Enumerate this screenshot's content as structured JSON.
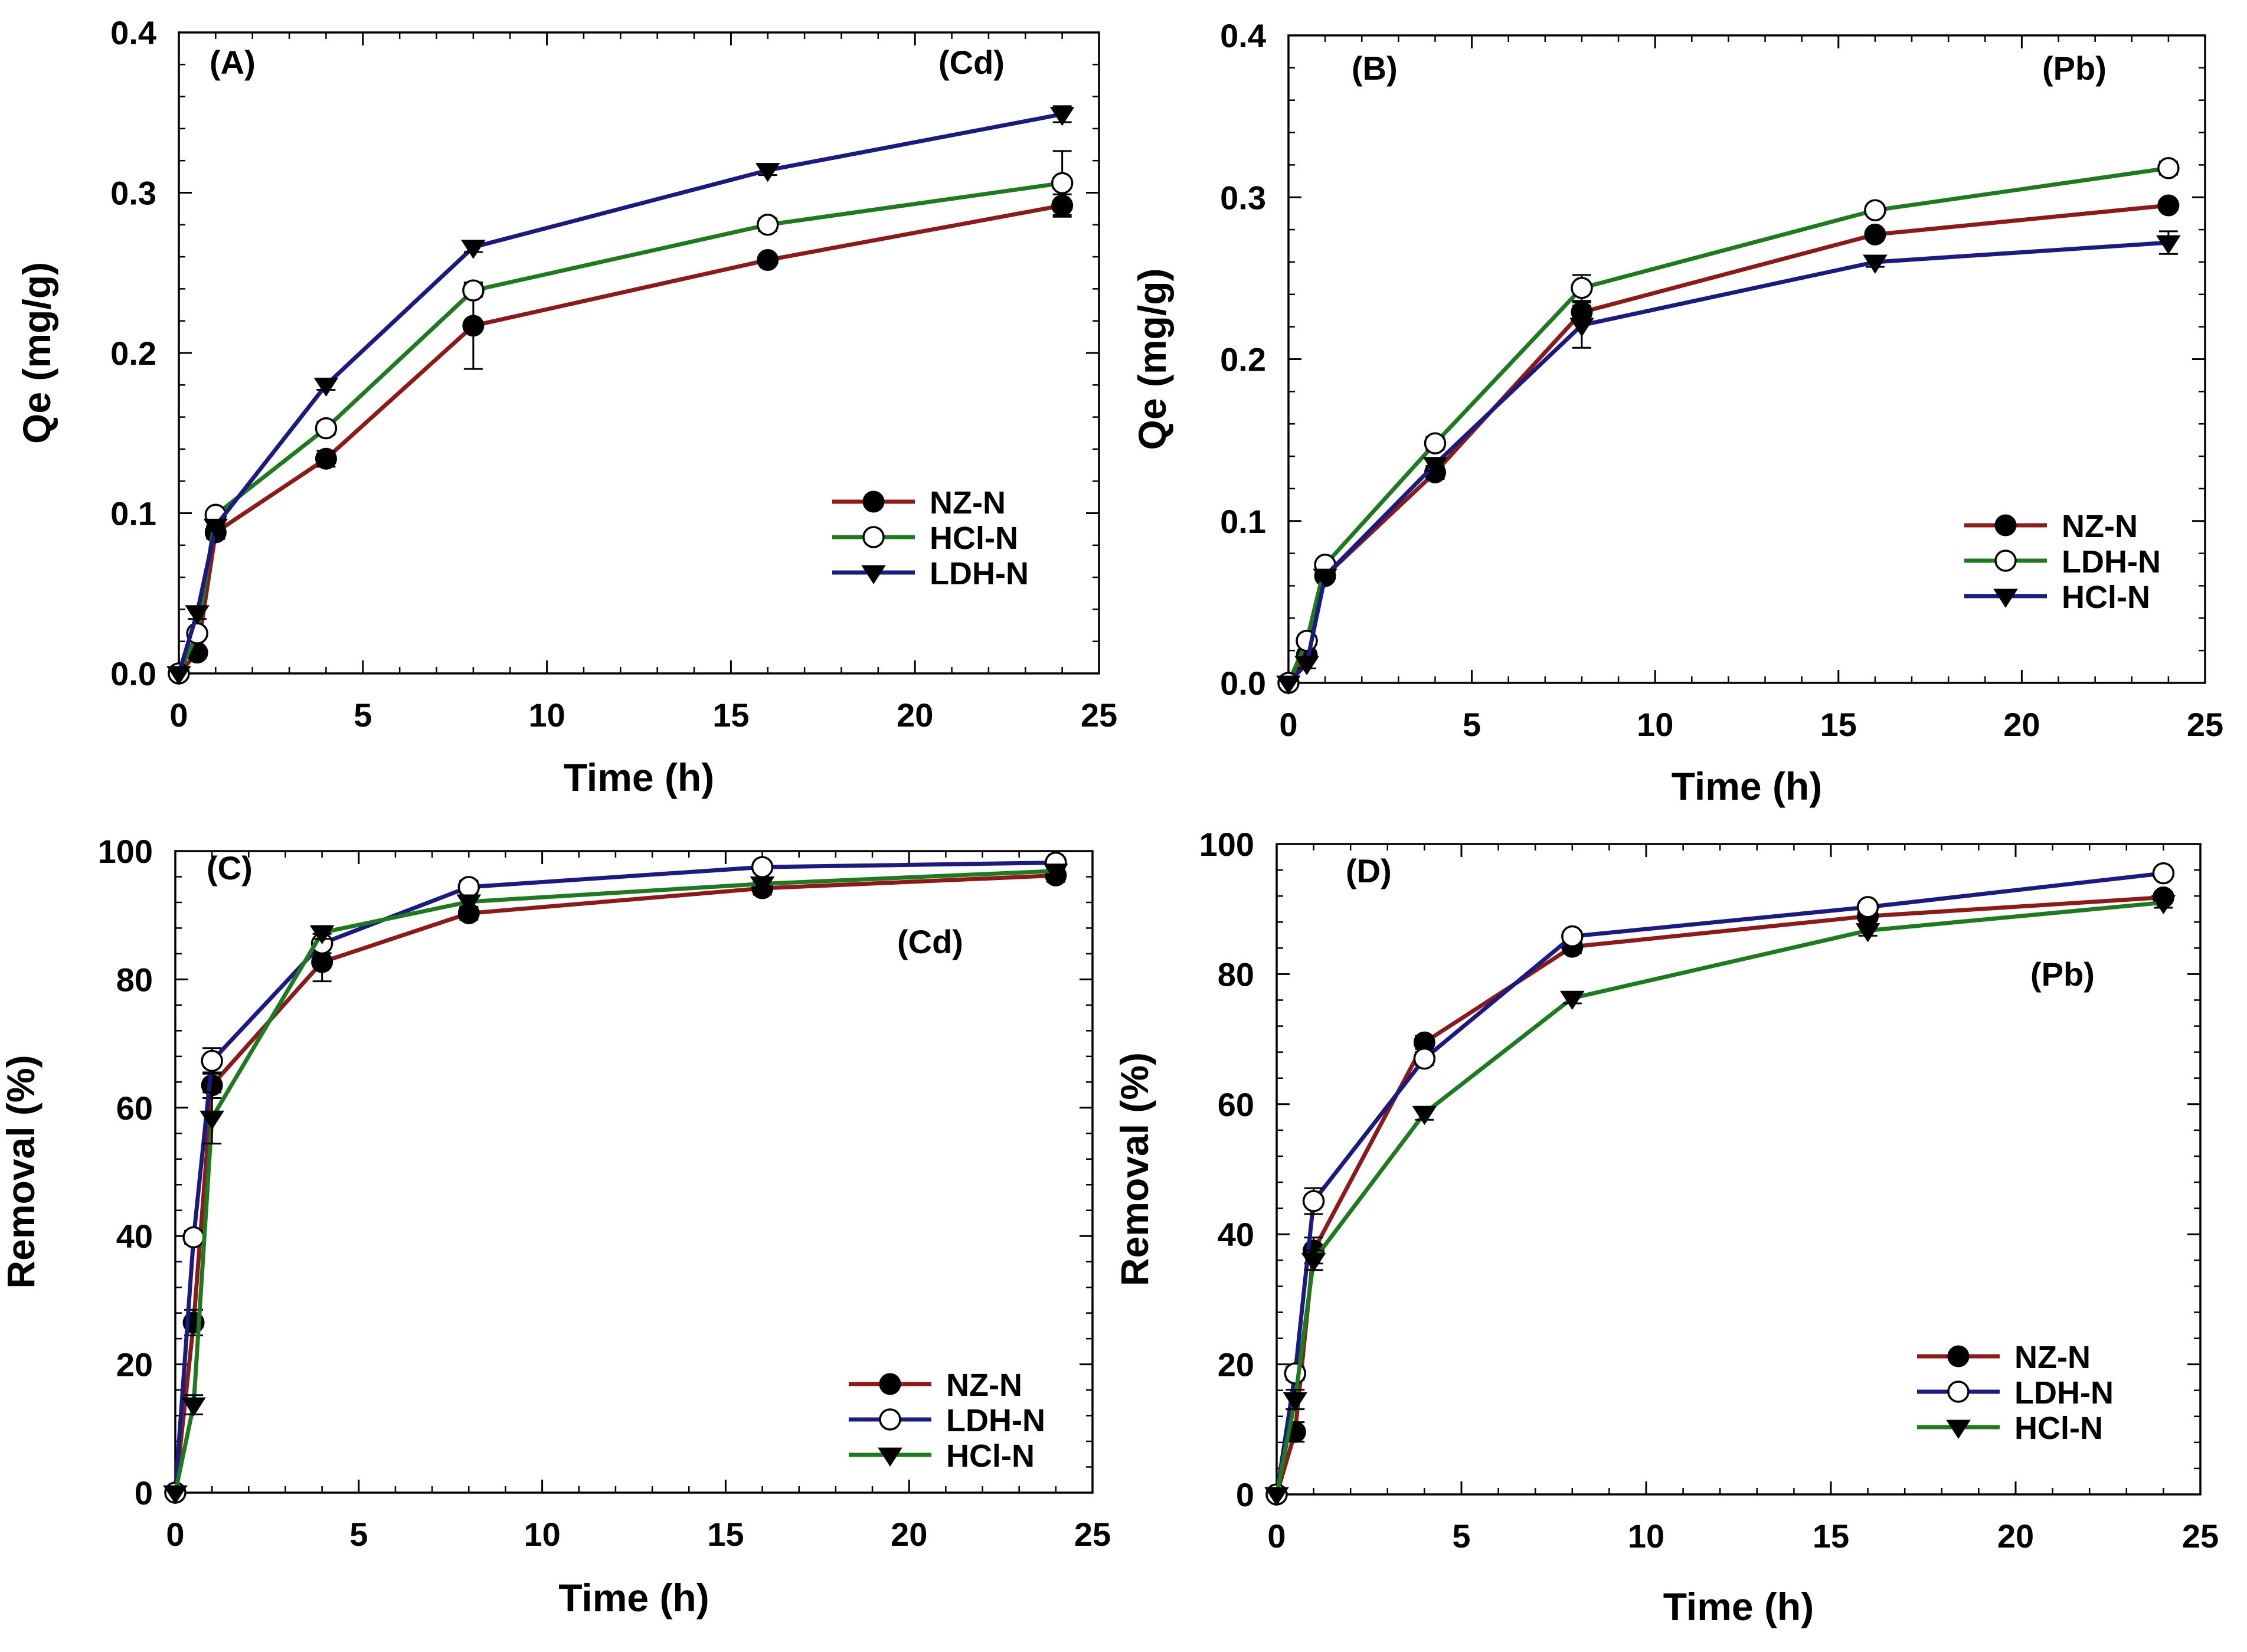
{
  "figure": {
    "panels": [
      "A",
      "B",
      "C",
      "D"
    ]
  },
  "colors": {
    "dark_red": "#8b1a1a",
    "green": "#1f7a1f",
    "navy": "#1a1a80",
    "black": "#000000"
  },
  "chart_data": [
    {
      "type": "line",
      "panel_label": "(A)",
      "metal_label": "(Cd)",
      "xlabel": "Time (h)",
      "ylabel": "Qe (mg/g)",
      "xlim": [
        0,
        25
      ],
      "ylim": [
        0,
        0.4
      ],
      "xticks": [
        0,
        5,
        10,
        15,
        20,
        25
      ],
      "xtick_labels": [
        "0",
        "5",
        "10",
        "15",
        "20",
        "25"
      ],
      "yticks": [
        0,
        0.1,
        0.2,
        0.3,
        0.4
      ],
      "ytick_labels": [
        "0.0",
        "0.1",
        "0.2",
        "0.3",
        "0.4"
      ],
      "legend_position": "lower-right",
      "x": [
        0,
        0.5,
        1,
        4,
        8,
        16,
        24
      ],
      "series": [
        {
          "name": "NZ-N",
          "marker": "filled-circle",
          "color": "#8b1a1a",
          "values": [
            0,
            0.013,
            0.088,
            0.134,
            0.217,
            0.258,
            0.292
          ],
          "errors": [
            0,
            0.003,
            0.004,
            0.005,
            0.027,
            0.003,
            0.007
          ]
        },
        {
          "name": "HCl-N",
          "marker": "open-circle",
          "color": "#1f7a1f",
          "values": [
            0,
            0.025,
            0.099,
            0.153,
            0.239,
            0.28,
            0.306
          ],
          "errors": [
            0,
            0.003,
            0.003,
            0.004,
            0.004,
            0.004,
            0.02
          ]
        },
        {
          "name": "LDH-N",
          "marker": "filled-triangle-down",
          "color": "#1a1a80",
          "values": [
            0,
            0.038,
            0.092,
            0.18,
            0.266,
            0.314,
            0.349
          ],
          "errors": [
            0,
            0.004,
            0.003,
            0.003,
            0.003,
            0.003,
            0.005
          ]
        }
      ]
    },
    {
      "type": "line",
      "panel_label": "(B)",
      "metal_label": "(Pb)",
      "xlabel": "Time (h)",
      "ylabel": "Qe (mg/g)",
      "xlim": [
        0,
        25
      ],
      "ylim": [
        0,
        0.4
      ],
      "xticks": [
        0,
        5,
        10,
        15,
        20,
        25
      ],
      "xtick_labels": [
        "0",
        "5",
        "10",
        "15",
        "20",
        "25"
      ],
      "yticks": [
        0,
        0.1,
        0.2,
        0.3,
        0.4
      ],
      "ytick_labels": [
        "0.0",
        "0.1",
        "0.2",
        "0.3",
        "0.4"
      ],
      "legend_position": "lower-right",
      "x": [
        0,
        0.5,
        1,
        4,
        8,
        16,
        24
      ],
      "series": [
        {
          "name": "NZ-N",
          "marker": "filled-circle",
          "color": "#8b1a1a",
          "values": [
            0,
            0.017,
            0.066,
            0.13,
            0.229,
            0.277,
            0.295
          ],
          "errors": [
            0,
            0.003,
            0.003,
            0.004,
            0.004,
            0.003,
            0.003
          ]
        },
        {
          "name": "LDH-N",
          "marker": "open-circle",
          "color": "#1f7a1f",
          "values": [
            0,
            0.026,
            0.073,
            0.148,
            0.244,
            0.292,
            0.318
          ],
          "errors": [
            0,
            0.003,
            0.003,
            0.004,
            0.008,
            0.003,
            0.004
          ]
        },
        {
          "name": "HCl-N",
          "marker": "filled-triangle-down",
          "color": "#1a1a80",
          "values": [
            0,
            0.012,
            0.066,
            0.135,
            0.221,
            0.26,
            0.272
          ],
          "errors": [
            0,
            0.003,
            0.003,
            0.004,
            0.014,
            0.003,
            0.007
          ]
        }
      ]
    },
    {
      "type": "line",
      "panel_label": "(C)",
      "metal_label": "(Cd)",
      "xlabel": "Time (h)",
      "ylabel": "Removal (%)",
      "xlim": [
        0,
        25
      ],
      "ylim": [
        0,
        100
      ],
      "xticks": [
        0,
        5,
        10,
        15,
        20,
        25
      ],
      "xtick_labels": [
        "0",
        "5",
        "10",
        "15",
        "20",
        "25"
      ],
      "yticks": [
        0,
        20,
        40,
        60,
        80,
        100
      ],
      "ytick_labels": [
        "0",
        "20",
        "40",
        "60",
        "80",
        "100"
      ],
      "legend_position": "lower-right",
      "x": [
        0,
        0.5,
        1,
        4,
        8,
        16,
        24
      ],
      "series": [
        {
          "name": "NZ-N",
          "marker": "filled-circle",
          "color": "#8b1a1a",
          "values": [
            0,
            26.5,
            63.5,
            82.7,
            90.3,
            94.2,
            96.2
          ],
          "errors": [
            0,
            2.0,
            2.0,
            3.0,
            1.0,
            1.0,
            1.0
          ]
        },
        {
          "name": "LDH-N",
          "marker": "open-circle",
          "color": "#1a1a80",
          "values": [
            0,
            39.8,
            67.3,
            85.6,
            94.4,
            97.5,
            98.2
          ],
          "errors": [
            0,
            1.0,
            2.0,
            1.5,
            1.0,
            0.5,
            0.5
          ]
        },
        {
          "name": "HCl-N",
          "marker": "filled-triangle-down",
          "color": "#1f7a1f",
          "values": [
            0,
            13.7,
            58.4,
            87.3,
            92.1,
            94.9,
            96.9
          ],
          "errors": [
            0,
            1.5,
            4.0,
            1.0,
            1.0,
            0.8,
            0.5
          ]
        }
      ]
    },
    {
      "type": "line",
      "panel_label": "(D)",
      "metal_label": "(Pb)",
      "xlabel": "Time (h)",
      "ylabel": "Removal (%)",
      "xlim": [
        0,
        25
      ],
      "ylim": [
        0,
        100
      ],
      "xticks": [
        0,
        5,
        10,
        15,
        20,
        25
      ],
      "xtick_labels": [
        "0",
        "5",
        "10",
        "15",
        "20",
        "25"
      ],
      "yticks": [
        0,
        20,
        40,
        60,
        80,
        100
      ],
      "ytick_labels": [
        "0",
        "20",
        "40",
        "60",
        "80",
        "100"
      ],
      "legend_position": "lower-right",
      "x": [
        0,
        0.5,
        1,
        4,
        8,
        16,
        24
      ],
      "series": [
        {
          "name": "NZ-N",
          "marker": "filled-circle",
          "color": "#8b1a1a",
          "values": [
            0,
            9.6,
            37.5,
            69.5,
            84.2,
            88.9,
            91.8
          ],
          "errors": [
            0,
            1.5,
            2.0,
            1.0,
            1.0,
            0.8,
            0.8
          ]
        },
        {
          "name": "LDH-N",
          "marker": "open-circle",
          "color": "#1a1a80",
          "values": [
            0,
            18.6,
            45.1,
            67.0,
            85.8,
            90.3,
            95.5
          ],
          "errors": [
            0,
            1.0,
            2.0,
            1.0,
            0.8,
            0.8,
            0.8
          ]
        },
        {
          "name": "HCl-N",
          "marker": "filled-triangle-down",
          "color": "#1f7a1f",
          "values": [
            0,
            14.6,
            36.0,
            58.6,
            76.3,
            86.7,
            91.0
          ],
          "errors": [
            0,
            1.5,
            1.5,
            1.0,
            0.8,
            0.8,
            0.8
          ]
        }
      ]
    }
  ]
}
